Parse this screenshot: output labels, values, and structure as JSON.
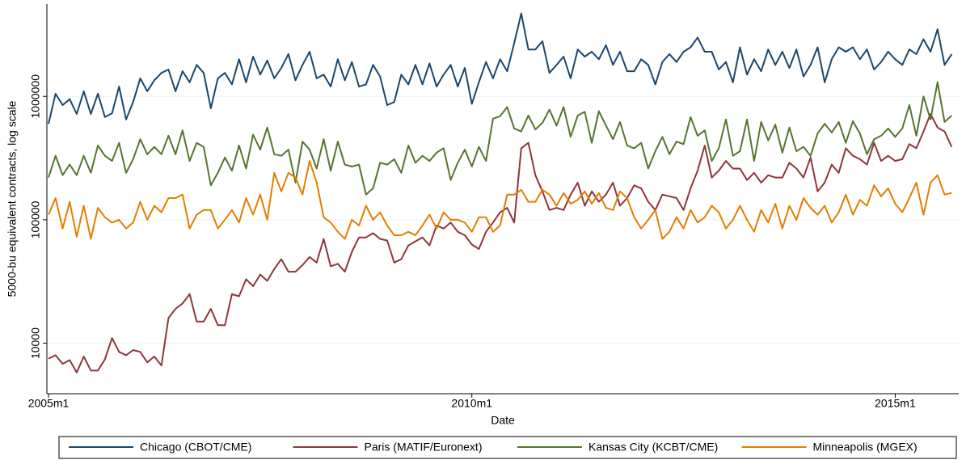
{
  "chart_data": {
    "type": "line",
    "x_label": "Date",
    "y_label": "5000-bu equivalent contracts, log scale",
    "log_y": true,
    "grid": true,
    "legend": "bottom",
    "xlim": [
      540,
      669
    ],
    "xticks": [
      {
        "value": 540,
        "label": "2005m1"
      },
      {
        "value": 600,
        "label": "2010m1"
      },
      {
        "value": 660,
        "label": "2015m1"
      }
    ],
    "ylim": [
      3900,
      5600000
    ],
    "yticks": [
      10000,
      100000,
      1000000
    ],
    "x": [
      540,
      541,
      542,
      543,
      544,
      545,
      546,
      547,
      548,
      549,
      550,
      551,
      552,
      553,
      554,
      555,
      556,
      557,
      558,
      559,
      560,
      561,
      562,
      563,
      564,
      565,
      566,
      567,
      568,
      569,
      570,
      571,
      572,
      573,
      574,
      575,
      576,
      577,
      578,
      579,
      580,
      581,
      582,
      583,
      584,
      585,
      586,
      587,
      588,
      589,
      590,
      591,
      592,
      593,
      594,
      595,
      596,
      597,
      598,
      599,
      600,
      601,
      602,
      603,
      604,
      605,
      606,
      607,
      608,
      609,
      610,
      611,
      612,
      613,
      614,
      615,
      616,
      617,
      618,
      619,
      620,
      621,
      622,
      623,
      624,
      625,
      626,
      627,
      628,
      629,
      630,
      631,
      632,
      633,
      634,
      635,
      636,
      637,
      638,
      639,
      640,
      641,
      642,
      643,
      644,
      645,
      646,
      647,
      648,
      649,
      650,
      651,
      652,
      653,
      654,
      655,
      656,
      657,
      658,
      659,
      660,
      661,
      662,
      663,
      664,
      665,
      666,
      667,
      668
    ],
    "series": [
      {
        "name": "Chicago (CBOT/CME)",
        "color": "#1a476f",
        "values": [
          600000,
          1050000,
          850000,
          950000,
          720000,
          1100000,
          720000,
          1050000,
          680000,
          730000,
          1200000,
          650000,
          900000,
          1400000,
          1100000,
          1350000,
          1550000,
          1650000,
          1100000,
          1600000,
          1300000,
          1800000,
          1550000,
          800000,
          1400000,
          1550000,
          1250000,
          2000000,
          1300000,
          2100000,
          1500000,
          1950000,
          1400000,
          1700000,
          2200000,
          1350000,
          1800000,
          2300000,
          1400000,
          1500000,
          1200000,
          2000000,
          1350000,
          1900000,
          1200000,
          1250000,
          1800000,
          1450000,
          850000,
          900000,
          1500000,
          1250000,
          1800000,
          1250000,
          1850000,
          1200000,
          1500000,
          1800000,
          1200000,
          1700000,
          870000,
          1300000,
          1900000,
          1400000,
          2000000,
          1600000,
          2700000,
          4700000,
          2400000,
          2400000,
          2800000,
          1550000,
          1800000,
          2100000,
          1400000,
          2400000,
          2100000,
          2300000,
          2000000,
          2600000,
          1800000,
          2300000,
          1600000,
          1600000,
          2000000,
          1800000,
          1250000,
          1900000,
          2200000,
          1900000,
          2300000,
          2500000,
          3000000,
          2300000,
          2300000,
          1650000,
          1900000,
          1300000,
          2500000,
          1500000,
          2000000,
          1600000,
          2400000,
          1800000,
          2300000,
          1700000,
          2400000,
          1450000,
          1800000,
          2500000,
          1300000,
          2000000,
          2500000,
          2300000,
          2500000,
          2000000,
          2400000,
          1650000,
          1900000,
          2300000,
          2000000,
          1800000,
          2400000,
          2200000,
          2900000,
          2300000,
          3500000,
          1800000,
          2200000
        ]
      },
      {
        "name": "Paris (MATIF/Euronext)",
        "color": "#90353b",
        "values": [
          7500,
          8000,
          6800,
          7300,
          5800,
          7800,
          6000,
          6000,
          7400,
          11000,
          8500,
          8000,
          8800,
          8500,
          7000,
          7800,
          6600,
          16000,
          19000,
          21000,
          25000,
          15000,
          15000,
          19000,
          14000,
          14000,
          25000,
          24000,
          33000,
          29000,
          36000,
          32000,
          40000,
          48000,
          38000,
          38000,
          43000,
          50000,
          45000,
          70000,
          42000,
          44000,
          38000,
          55000,
          72000,
          72000,
          78000,
          70000,
          68000,
          45000,
          48000,
          62000,
          67000,
          72000,
          62000,
          90000,
          85000,
          95000,
          80000,
          75000,
          63000,
          58000,
          80000,
          95000,
          115000,
          125000,
          95000,
          380000,
          420000,
          230000,
          170000,
          120000,
          125000,
          120000,
          160000,
          200000,
          130000,
          170000,
          140000,
          160000,
          200000,
          130000,
          150000,
          190000,
          180000,
          140000,
          120000,
          160000,
          155000,
          150000,
          120000,
          180000,
          250000,
          400000,
          220000,
          250000,
          300000,
          260000,
          260000,
          210000,
          240000,
          200000,
          230000,
          220000,
          220000,
          290000,
          260000,
          220000,
          320000,
          170000,
          200000,
          280000,
          240000,
          380000,
          330000,
          310000,
          280000,
          420000,
          300000,
          330000,
          300000,
          310000,
          410000,
          380000,
          520000,
          720000,
          560000,
          520000,
          390000
        ]
      },
      {
        "name": "Kansas City (KCBT/CME)",
        "color": "#55752f",
        "values": [
          220000,
          330000,
          230000,
          280000,
          230000,
          330000,
          240000,
          400000,
          330000,
          300000,
          420000,
          240000,
          310000,
          450000,
          340000,
          390000,
          340000,
          480000,
          340000,
          530000,
          300000,
          420000,
          390000,
          190000,
          240000,
          320000,
          250000,
          400000,
          260000,
          490000,
          370000,
          560000,
          340000,
          330000,
          370000,
          200000,
          430000,
          370000,
          260000,
          450000,
          250000,
          430000,
          280000,
          270000,
          280000,
          160000,
          180000,
          290000,
          280000,
          310000,
          240000,
          400000,
          290000,
          330000,
          300000,
          350000,
          380000,
          210000,
          290000,
          370000,
          270000,
          390000,
          300000,
          660000,
          690000,
          820000,
          550000,
          520000,
          700000,
          540000,
          610000,
          780000,
          580000,
          820000,
          470000,
          700000,
          750000,
          420000,
          760000,
          580000,
          450000,
          620000,
          400000,
          380000,
          420000,
          260000,
          360000,
          470000,
          340000,
          430000,
          410000,
          680000,
          480000,
          530000,
          300000,
          380000,
          650000,
          330000,
          360000,
          650000,
          300000,
          620000,
          440000,
          590000,
          350000,
          560000,
          360000,
          390000,
          330000,
          500000,
          600000,
          510000,
          620000,
          420000,
          630000,
          500000,
          340000,
          450000,
          480000,
          550000,
          470000,
          550000,
          850000,
          480000,
          1000000,
          650000,
          1300000,
          620000,
          700000
        ]
      },
      {
        "name": "Minneapolis (MGEX)",
        "color": "#e37e00",
        "values": [
          110000,
          150000,
          85000,
          140000,
          73000,
          130000,
          70000,
          125000,
          105000,
          95000,
          100000,
          85000,
          95000,
          140000,
          100000,
          130000,
          115000,
          150000,
          150000,
          160000,
          85000,
          110000,
          120000,
          120000,
          85000,
          100000,
          120000,
          95000,
          150000,
          110000,
          160000,
          100000,
          240000,
          170000,
          240000,
          220000,
          160000,
          300000,
          200000,
          105000,
          95000,
          80000,
          70000,
          100000,
          90000,
          130000,
          100000,
          115000,
          90000,
          75000,
          75000,
          80000,
          75000,
          90000,
          110000,
          85000,
          115000,
          100000,
          100000,
          95000,
          80000,
          105000,
          105000,
          80000,
          90000,
          160000,
          160000,
          175000,
          140000,
          140000,
          175000,
          160000,
          130000,
          165000,
          135000,
          145000,
          170000,
          135000,
          165000,
          125000,
          120000,
          170000,
          150000,
          105000,
          85000,
          100000,
          120000,
          70000,
          80000,
          105000,
          85000,
          120000,
          95000,
          105000,
          130000,
          115000,
          85000,
          100000,
          130000,
          100000,
          80000,
          120000,
          95000,
          135000,
          85000,
          130000,
          100000,
          150000,
          125000,
          110000,
          130000,
          95000,
          115000,
          160000,
          110000,
          145000,
          130000,
          190000,
          155000,
          180000,
          135000,
          115000,
          150000,
          200000,
          110000,
          200000,
          230000,
          160000,
          165000
        ]
      }
    ]
  }
}
